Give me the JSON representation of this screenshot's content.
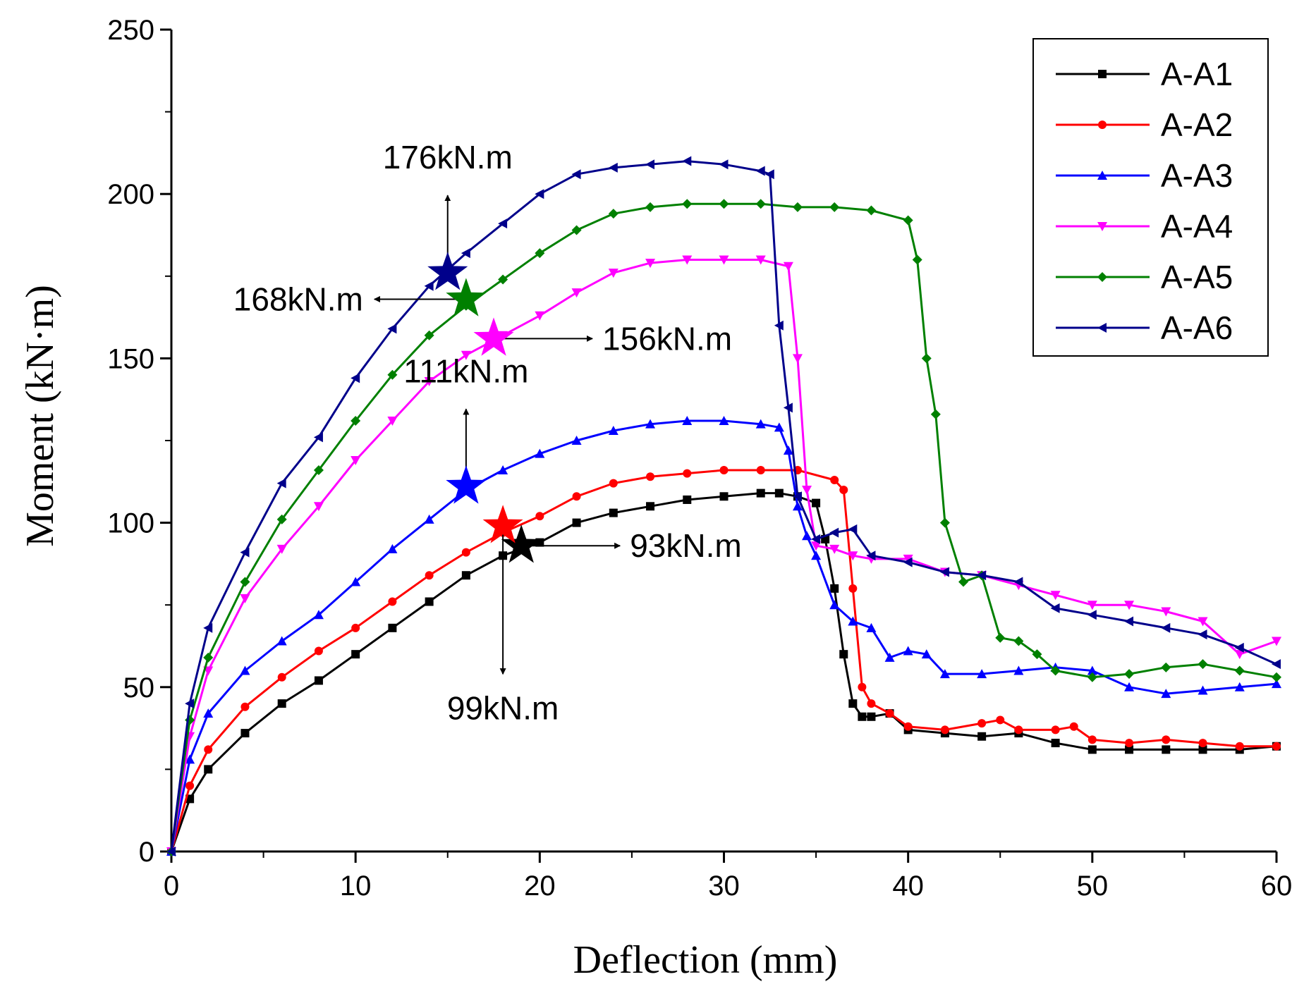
{
  "chart_data": {
    "type": "line",
    "title": "",
    "xlabel": "Deflection (mm)",
    "ylabel": "Moment (kN·m)",
    "xlim": [
      0,
      60
    ],
    "ylim": [
      0,
      250
    ],
    "xticks": [
      0,
      10,
      20,
      30,
      40,
      50,
      60
    ],
    "yticks": [
      0,
      50,
      100,
      150,
      200,
      250
    ],
    "grid": false,
    "legend_position": "top-right",
    "series": [
      {
        "name": "A-A1",
        "color": "#000000",
        "marker": "square",
        "x": [
          0,
          1,
          2,
          4,
          6,
          8,
          10,
          12,
          14,
          16,
          18,
          20,
          22,
          24,
          26,
          28,
          30,
          32,
          33,
          34,
          35,
          35.5,
          36,
          36.5,
          37,
          37.5,
          38,
          39,
          40,
          42,
          44,
          46,
          48,
          50,
          52,
          54,
          56,
          58,
          60
        ],
        "y": [
          0,
          16,
          25,
          36,
          45,
          52,
          60,
          68,
          76,
          84,
          90,
          94,
          100,
          103,
          105,
          107,
          108,
          109,
          109,
          108,
          106,
          95,
          80,
          60,
          45,
          41,
          41,
          42,
          37,
          36,
          35,
          36,
          33,
          31,
          31,
          31,
          31,
          31,
          32
        ]
      },
      {
        "name": "A-A2",
        "color": "#ff0000",
        "marker": "circle",
        "x": [
          0,
          1,
          2,
          4,
          6,
          8,
          10,
          12,
          14,
          16,
          18,
          20,
          22,
          24,
          26,
          28,
          30,
          32,
          34,
          36,
          36.5,
          37,
          37.5,
          38,
          39,
          40,
          42,
          44,
          45,
          46,
          48,
          49,
          50,
          52,
          54,
          56,
          58,
          60
        ],
        "y": [
          0,
          20,
          31,
          44,
          53,
          61,
          68,
          76,
          84,
          91,
          97,
          102,
          108,
          112,
          114,
          115,
          116,
          116,
          116,
          113,
          110,
          80,
          50,
          45,
          42,
          38,
          37,
          39,
          40,
          37,
          37,
          38,
          34,
          33,
          34,
          33,
          32,
          32
        ]
      },
      {
        "name": "A-A3",
        "color": "#0000ff",
        "marker": "triangle-up",
        "x": [
          0,
          1,
          2,
          4,
          6,
          8,
          10,
          12,
          14,
          16,
          18,
          20,
          22,
          24,
          26,
          28,
          30,
          32,
          33,
          33.5,
          34,
          34.5,
          35,
          36,
          37,
          38,
          39,
          40,
          41,
          42,
          44,
          46,
          48,
          50,
          52,
          54,
          56,
          58,
          60
        ],
        "y": [
          0,
          28,
          42,
          55,
          64,
          72,
          82,
          92,
          101,
          110,
          116,
          121,
          125,
          128,
          130,
          131,
          131,
          130,
          129,
          122,
          105,
          96,
          90,
          75,
          70,
          68,
          59,
          61,
          60,
          54,
          54,
          55,
          56,
          55,
          50,
          48,
          49,
          50,
          51
        ]
      },
      {
        "name": "A-A4",
        "color": "#ff00ff",
        "marker": "triangle-down",
        "x": [
          0,
          1,
          2,
          4,
          6,
          8,
          10,
          12,
          14,
          16,
          18,
          20,
          22,
          24,
          26,
          28,
          30,
          32,
          33.5,
          34,
          34.5,
          35,
          36,
          37,
          38,
          40,
          42,
          44,
          46,
          48,
          50,
          52,
          54,
          56,
          58,
          60
        ],
        "y": [
          0,
          35,
          55,
          77,
          92,
          105,
          119,
          131,
          143,
          151,
          157,
          163,
          170,
          176,
          179,
          180,
          180,
          180,
          178,
          150,
          110,
          93,
          92,
          90,
          89,
          89,
          85,
          84,
          81,
          78,
          75,
          75,
          73,
          70,
          60,
          64
        ]
      },
      {
        "name": "A-A5",
        "color": "#008000",
        "marker": "diamond",
        "x": [
          0,
          1,
          2,
          4,
          6,
          8,
          10,
          12,
          14,
          16,
          18,
          20,
          22,
          24,
          26,
          28,
          30,
          32,
          34,
          36,
          38,
          40,
          40.5,
          41,
          41.5,
          42,
          43,
          44,
          45,
          46,
          47,
          48,
          50,
          52,
          54,
          56,
          58,
          60
        ],
        "y": [
          0,
          40,
          59,
          82,
          101,
          116,
          131,
          145,
          157,
          166,
          174,
          182,
          189,
          194,
          196,
          197,
          197,
          197,
          196,
          196,
          195,
          192,
          180,
          150,
          133,
          100,
          82,
          84,
          65,
          64,
          60,
          55,
          53,
          54,
          56,
          57,
          55,
          53
        ]
      },
      {
        "name": "A-A6",
        "color": "#00008b",
        "marker": "triangle-left",
        "x": [
          0,
          1,
          2,
          4,
          6,
          8,
          10,
          12,
          14,
          16,
          18,
          20,
          22,
          24,
          26,
          28,
          30,
          32,
          32.5,
          33,
          33.5,
          34,
          35,
          36,
          37,
          38,
          40,
          42,
          44,
          46,
          48,
          50,
          52,
          54,
          56,
          58,
          60
        ],
        "y": [
          0,
          45,
          68,
          91,
          112,
          126,
          144,
          159,
          172,
          182,
          191,
          200,
          206,
          208,
          209,
          210,
          209,
          207,
          206,
          160,
          135,
          108,
          95,
          97,
          98,
          90,
          88,
          85,
          84,
          82,
          74,
          72,
          70,
          68,
          66,
          62,
          57
        ]
      }
    ],
    "annotations": [
      {
        "label": "176kN.m",
        "series": "A-A6",
        "x": 15,
        "y": 176,
        "arrow": "up",
        "color": "#00008b"
      },
      {
        "label": "168kN.m",
        "series": "A-A5",
        "x": 16,
        "y": 168,
        "arrow": "left",
        "color": "#008000"
      },
      {
        "label": "156kN.m",
        "series": "A-A4",
        "x": 17.5,
        "y": 156,
        "arrow": "right",
        "color": "#ff00ff"
      },
      {
        "label": "111kN.m",
        "series": "A-A3",
        "x": 16,
        "y": 111,
        "arrow": "up",
        "color": "#0000ff"
      },
      {
        "label": "93kN.m",
        "series": "A-A1",
        "x": 19,
        "y": 93,
        "arrow": "right",
        "color": "#000000"
      },
      {
        "label": "99kN.m",
        "series": "A-A2",
        "x": 18,
        "y": 99,
        "arrow": "down",
        "color": "#ff0000"
      }
    ]
  }
}
